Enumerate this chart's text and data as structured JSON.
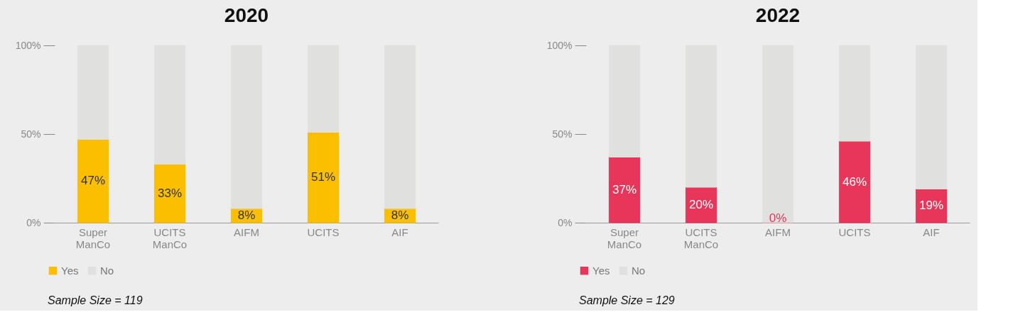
{
  "chart_data": [
    {
      "type": "bar",
      "title": "2020",
      "stacked": true,
      "categories": [
        "Super ManCo",
        "UCITS ManCo",
        "AIFM",
        "UCITS",
        "AIF"
      ],
      "series": [
        {
          "name": "Yes",
          "color": "#fbbf00",
          "values": [
            47,
            33,
            8,
            51,
            8
          ],
          "value_labels": [
            "47%",
            "33%",
            "8%",
            "51%",
            "8%"
          ]
        },
        {
          "name": "No",
          "color": "#e0e0de",
          "values": [
            53,
            67,
            92,
            49,
            92
          ]
        }
      ],
      "ylim": [
        0,
        100
      ],
      "yticks": [
        {
          "value": 0,
          "label": "0%"
        },
        {
          "value": 50,
          "label": "50%"
        },
        {
          "value": 100,
          "label": "100%"
        }
      ],
      "grid": false,
      "legend": "bottom left",
      "annotations": [
        "Sample Size = 119"
      ]
    },
    {
      "type": "bar",
      "title": "2022",
      "stacked": true,
      "categories": [
        "Super ManCo",
        "UCITS ManCo",
        "AIFM",
        "UCITS",
        "AIF"
      ],
      "series": [
        {
          "name": "Yes",
          "color": "#e8365a",
          "values": [
            37,
            20,
            0,
            46,
            19
          ],
          "value_labels": [
            "37%",
            "20%",
            "0%",
            "46%",
            "19%"
          ]
        },
        {
          "name": "No",
          "color": "#e0e0de",
          "values": [
            63,
            80,
            100,
            54,
            81
          ]
        }
      ],
      "ylim": [
        0,
        100
      ],
      "yticks": [
        {
          "value": 0,
          "label": "0%"
        },
        {
          "value": 50,
          "label": "50%"
        },
        {
          "value": 100,
          "label": "100%"
        }
      ],
      "grid": false,
      "legend": "bottom left",
      "annotations": [
        "Sample Size = 129"
      ]
    }
  ]
}
